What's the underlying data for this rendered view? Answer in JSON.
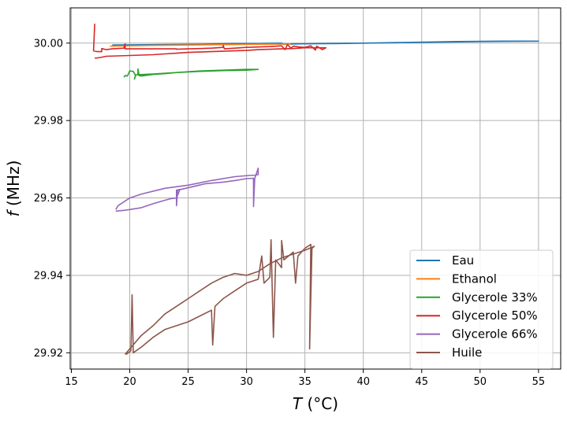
{
  "chart_data": {
    "type": "line",
    "xlabel_italic": "T",
    "xlabel_unit": " (°C)",
    "ylabel_italic": "f",
    "ylabel_unit": " (MHz)",
    "xlim": [
      14.9,
      56.9
    ],
    "ylim": [
      29.9158,
      30.0091
    ],
    "xticks": [
      15,
      20,
      25,
      30,
      35,
      40,
      45,
      50,
      55
    ],
    "yticks": [
      29.92,
      29.94,
      29.96,
      29.98,
      30.0
    ],
    "ytick_labels": [
      "29.92",
      "29.94",
      "29.96",
      "29.98",
      "30.00"
    ],
    "grid": true,
    "legend_position": "lower right",
    "series": [
      {
        "name": "Eau",
        "color": "#1f77b4",
        "points": [
          [
            18.5,
            29.9995
          ],
          [
            22,
            29.9996
          ],
          [
            26,
            29.9997
          ],
          [
            29,
            29.9999
          ],
          [
            31,
            29.9999
          ],
          [
            33,
            30.0
          ],
          [
            33.2,
            29.9997
          ],
          [
            36,
            29.9999
          ],
          [
            40,
            30.0
          ],
          [
            45,
            30.0002
          ],
          [
            50,
            30.0004
          ],
          [
            55,
            30.0005
          ],
          [
            52,
            30.0005
          ],
          [
            48,
            30.0004
          ],
          [
            42,
            30.0001
          ],
          [
            38,
            29.9999
          ],
          [
            34,
            29.9998
          ],
          [
            30,
            29.9997
          ],
          [
            26,
            29.9996
          ],
          [
            22,
            29.9995
          ],
          [
            18.5,
            29.9994
          ]
        ]
      },
      {
        "name": "Ethanol",
        "color": "#ff7f0e",
        "points": [
          [
            18.3,
            29.9992
          ],
          [
            20,
            29.9993
          ],
          [
            22,
            29.9994
          ],
          [
            25,
            29.9995
          ],
          [
            28,
            29.9996
          ],
          [
            31,
            29.9997
          ],
          [
            33.8,
            29.9998
          ]
        ]
      },
      {
        "name": "Glycerole 33%",
        "color": "#2ca02c",
        "points": [
          [
            20.7,
            29.9919
          ],
          [
            20.7,
            29.9933
          ],
          [
            20.8,
            29.9916
          ],
          [
            21,
            29.9915
          ],
          [
            21.5,
            29.9917
          ],
          [
            22,
            29.9919
          ],
          [
            23,
            29.9921
          ],
          [
            24,
            29.9924
          ],
          [
            25,
            29.9926
          ],
          [
            26,
            29.9928
          ],
          [
            27,
            29.9929
          ],
          [
            28,
            29.993
          ],
          [
            29,
            29.9931
          ],
          [
            30,
            29.9932
          ],
          [
            31,
            29.9932
          ],
          [
            30,
            29.993
          ],
          [
            28,
            29.9929
          ],
          [
            26,
            29.9927
          ],
          [
            24,
            29.9924
          ],
          [
            22,
            29.992
          ],
          [
            20.5,
            29.9918
          ],
          [
            20.4,
            29.9907
          ],
          [
            20.5,
            29.9916
          ],
          [
            20.3,
            29.9927
          ],
          [
            20.0,
            29.9928
          ],
          [
            19.8,
            29.9915
          ],
          [
            19.6,
            29.9916
          ],
          [
            19.5,
            29.9912
          ]
        ]
      },
      {
        "name": "Glycerole 50%",
        "color": "#d62728",
        "points": [
          [
            17.0,
            30.005
          ],
          [
            16.9,
            29.998
          ],
          [
            17.2,
            29.9978
          ],
          [
            17.6,
            29.9978
          ],
          [
            17.6,
            29.9986
          ],
          [
            18.0,
            29.9983
          ],
          [
            18.5,
            29.9985
          ],
          [
            19.5,
            29.9987
          ],
          [
            19.6,
            29.9998
          ],
          [
            19.6,
            29.9986
          ],
          [
            19.6,
            29.9985
          ],
          [
            24,
            29.9985
          ],
          [
            24,
            29.9984
          ],
          [
            25,
            29.9985
          ],
          [
            26,
            29.9986
          ],
          [
            27,
            29.9987
          ],
          [
            28,
            29.9989
          ],
          [
            28,
            29.9994
          ],
          [
            28.1,
            29.9985
          ],
          [
            29,
            29.9987
          ],
          [
            30,
            29.9989
          ],
          [
            31,
            29.999
          ],
          [
            32,
            29.9991
          ],
          [
            33,
            29.9993
          ],
          [
            33.3,
            29.9983
          ],
          [
            33.5,
            29.9996
          ],
          [
            33.8,
            29.9987
          ],
          [
            34,
            29.9992
          ],
          [
            34.5,
            29.999
          ],
          [
            35,
            29.9989
          ],
          [
            35.5,
            29.9993
          ],
          [
            35.9,
            29.9982
          ],
          [
            36,
            29.9992
          ],
          [
            36.5,
            29.9983
          ],
          [
            36.8,
            29.9988
          ],
          [
            36.4,
            29.9988
          ],
          [
            35,
            29.9988
          ],
          [
            34,
            29.9986
          ],
          [
            33,
            29.9985
          ],
          [
            32,
            29.9984
          ],
          [
            31,
            29.9983
          ],
          [
            30,
            29.9981
          ],
          [
            29,
            29.998
          ],
          [
            28,
            29.9979
          ],
          [
            27,
            29.9978
          ],
          [
            26,
            29.9977
          ],
          [
            25,
            29.9976
          ],
          [
            24,
            29.9974
          ],
          [
            23,
            29.9972
          ],
          [
            22,
            29.997
          ],
          [
            21,
            29.9969
          ],
          [
            20,
            29.9968
          ],
          [
            19,
            29.9967
          ],
          [
            18,
            29.9966
          ],
          [
            17.5,
            29.9963
          ],
          [
            17,
            29.9961
          ]
        ]
      },
      {
        "name": "Glycerole 66%",
        "color": "#9467bd",
        "points": [
          [
            18.8,
            29.9566
          ],
          [
            19.5,
            29.9568
          ],
          [
            20,
            29.957
          ],
          [
            21,
            29.9575
          ],
          [
            22,
            29.9585
          ],
          [
            23,
            29.9594
          ],
          [
            23.5,
            29.9598
          ],
          [
            24,
            29.96
          ],
          [
            24.3,
            29.9622
          ],
          [
            24,
            29.962
          ],
          [
            24,
            29.96
          ],
          [
            24,
            29.958
          ],
          [
            24.1,
            29.962
          ],
          [
            26.5,
            29.9637
          ],
          [
            28,
            29.9641
          ],
          [
            29,
            29.9645
          ],
          [
            30,
            29.965
          ],
          [
            30.6,
            29.9651
          ],
          [
            30.6,
            29.9578
          ],
          [
            30.7,
            29.965
          ],
          [
            31,
            29.9677
          ],
          [
            31,
            29.966
          ],
          [
            29,
            29.9655
          ],
          [
            27,
            29.9645
          ],
          [
            25,
            29.9633
          ],
          [
            23,
            29.9625
          ],
          [
            21,
            29.961
          ],
          [
            20,
            29.96
          ],
          [
            19,
            29.958
          ],
          [
            18.8,
            29.957
          ]
        ]
      },
      {
        "name": "Huile",
        "color": "#8c564b",
        "points": [
          [
            19.7,
            29.9196
          ],
          [
            20.1,
            29.9205
          ],
          [
            20.2,
            29.935
          ],
          [
            20.3,
            29.92
          ],
          [
            21,
            29.9215
          ],
          [
            22,
            29.924
          ],
          [
            23,
            29.926
          ],
          [
            24,
            29.927
          ],
          [
            25,
            29.928
          ],
          [
            26,
            29.9295
          ],
          [
            27,
            29.931
          ],
          [
            27.1,
            29.922
          ],
          [
            27.3,
            29.932
          ],
          [
            28,
            29.934
          ],
          [
            29,
            29.936
          ],
          [
            30,
            29.938
          ],
          [
            31,
            29.939
          ],
          [
            31.3,
            29.945
          ],
          [
            31.5,
            29.938
          ],
          [
            32,
            29.9395
          ],
          [
            32.1,
            29.9492
          ],
          [
            32.3,
            29.924
          ],
          [
            32.5,
            29.944
          ],
          [
            33,
            29.942
          ],
          [
            33,
            29.949
          ],
          [
            33.2,
            29.944
          ],
          [
            34,
            29.946
          ],
          [
            34.2,
            29.938
          ],
          [
            34.4,
            29.945
          ],
          [
            35,
            29.947
          ],
          [
            35.5,
            29.948
          ],
          [
            35.4,
            29.921
          ],
          [
            35.6,
            29.947
          ],
          [
            35.8,
            29.9475
          ],
          [
            35,
            29.9465
          ],
          [
            34,
            29.9455
          ],
          [
            33,
            29.9445
          ],
          [
            32,
            29.943
          ],
          [
            31,
            29.941
          ],
          [
            30,
            29.94
          ],
          [
            29,
            29.9405
          ],
          [
            28,
            29.9395
          ],
          [
            27,
            29.938
          ],
          [
            26,
            29.936
          ],
          [
            25,
            29.934
          ],
          [
            24,
            29.932
          ],
          [
            23,
            29.93
          ],
          [
            22,
            29.927
          ],
          [
            21,
            29.9245
          ],
          [
            20,
            29.921
          ],
          [
            19.6,
            29.9196
          ]
        ]
      }
    ]
  }
}
